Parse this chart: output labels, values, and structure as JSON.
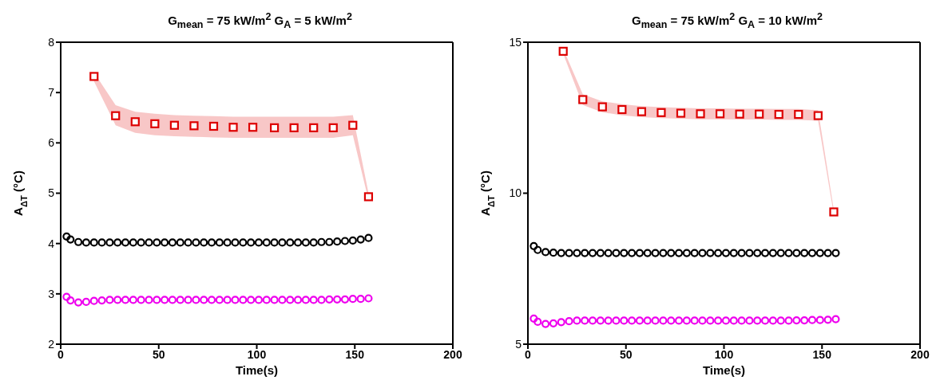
{
  "chart_data": [
    {
      "type": "scatter",
      "title": "G$_{mean}$ = 75 kW/m$^{2}$ G$_{A}$ = 5 kW/m$^{2}$",
      "xlabel": "Time(s)",
      "ylabel": "A$_{ΔT}$ (°C)",
      "xlim": [
        0,
        200
      ],
      "xticks": [
        0,
        50,
        100,
        150,
        200
      ],
      "ylim": [
        2,
        8
      ],
      "yticks": [
        2,
        3,
        4,
        5,
        6,
        7,
        8
      ],
      "series": [
        {
          "color": "#dd0000",
          "marker": "square",
          "x": [
            17,
            28,
            38,
            48,
            58,
            68,
            78,
            88,
            98,
            109,
            119,
            129,
            139,
            149,
            157
          ],
          "values": [
            7.32,
            6.54,
            6.42,
            6.38,
            6.35,
            6.34,
            6.33,
            6.31,
            6.31,
            6.3,
            6.3,
            6.3,
            6.3,
            6.35,
            4.93
          ],
          "lower": [
            7.22,
            6.35,
            6.2,
            6.15,
            6.13,
            6.12,
            6.11,
            6.1,
            6.1,
            6.1,
            6.1,
            6.1,
            6.1,
            6.15,
            4.86
          ],
          "upper": [
            7.4,
            6.75,
            6.62,
            6.58,
            6.55,
            6.54,
            6.53,
            6.52,
            6.52,
            6.52,
            6.52,
            6.52,
            6.52,
            6.55,
            5.0
          ]
        },
        {
          "color": "#000000",
          "marker": "circle",
          "x": [
            3,
            5,
            9,
            13,
            17,
            21,
            25,
            29,
            33,
            37,
            41,
            45,
            49,
            53,
            57,
            61,
            65,
            69,
            73,
            77,
            81,
            85,
            89,
            93,
            97,
            101,
            105,
            109,
            113,
            117,
            121,
            125,
            129,
            133,
            137,
            141,
            145,
            149,
            153,
            157
          ],
          "values": [
            4.14,
            4.08,
            4.03,
            4.02,
            4.02,
            4.02,
            4.02,
            4.02,
            4.02,
            4.02,
            4.02,
            4.02,
            4.02,
            4.02,
            4.02,
            4.02,
            4.02,
            4.02,
            4.02,
            4.02,
            4.02,
            4.02,
            4.02,
            4.02,
            4.02,
            4.02,
            4.02,
            4.02,
            4.02,
            4.02,
            4.02,
            4.02,
            4.02,
            4.03,
            4.03,
            4.04,
            4.05,
            4.06,
            4.08,
            4.11
          ]
        },
        {
          "color": "#ee00ee",
          "marker": "circle",
          "x": [
            3,
            5,
            9,
            13,
            17,
            21,
            25,
            29,
            33,
            37,
            41,
            45,
            49,
            53,
            57,
            61,
            65,
            69,
            73,
            77,
            81,
            85,
            89,
            93,
            97,
            101,
            105,
            109,
            113,
            117,
            121,
            125,
            129,
            133,
            137,
            141,
            145,
            149,
            153,
            157
          ],
          "values": [
            2.94,
            2.87,
            2.83,
            2.84,
            2.86,
            2.87,
            2.88,
            2.88,
            2.88,
            2.88,
            2.88,
            2.88,
            2.88,
            2.88,
            2.88,
            2.88,
            2.88,
            2.88,
            2.88,
            2.88,
            2.88,
            2.88,
            2.88,
            2.88,
            2.88,
            2.88,
            2.88,
            2.88,
            2.88,
            2.88,
            2.88,
            2.88,
            2.88,
            2.88,
            2.89,
            2.89,
            2.89,
            2.9,
            2.9,
            2.91
          ]
        }
      ]
    },
    {
      "type": "scatter",
      "title": "G$_{mean}$ = 75 kW/m$^{2}$ G$_{A}$ = 10 kW/m$^{2}$",
      "xlabel": "Time(s)",
      "ylabel": "A$_{ΔT}$ (°C)",
      "xlim": [
        0,
        200
      ],
      "xticks": [
        0,
        50,
        100,
        150,
        200
      ],
      "ylim": [
        5,
        15
      ],
      "yticks": [
        5,
        10,
        15
      ],
      "series": [
        {
          "color": "#dd0000",
          "marker": "square",
          "x": [
            18,
            28,
            38,
            48,
            58,
            68,
            78,
            88,
            98,
            108,
            118,
            128,
            138,
            148,
            156
          ],
          "values": [
            14.7,
            13.1,
            12.86,
            12.77,
            12.7,
            12.67,
            12.65,
            12.63,
            12.63,
            12.62,
            12.62,
            12.61,
            12.61,
            12.57,
            9.38
          ],
          "lower": [
            14.62,
            12.92,
            12.68,
            12.58,
            12.52,
            12.49,
            12.47,
            12.45,
            12.45,
            12.44,
            12.44,
            12.43,
            12.43,
            12.4,
            9.3
          ],
          "upper": [
            14.78,
            13.28,
            13.04,
            12.95,
            12.88,
            12.85,
            12.83,
            12.81,
            12.81,
            12.8,
            12.8,
            12.79,
            12.79,
            12.75,
            9.46
          ]
        },
        {
          "color": "#000000",
          "marker": "circle",
          "x": [
            3,
            5,
            9,
            13,
            17,
            21,
            25,
            29,
            33,
            37,
            41,
            45,
            49,
            53,
            57,
            61,
            65,
            69,
            73,
            77,
            81,
            85,
            89,
            93,
            97,
            101,
            105,
            109,
            113,
            117,
            121,
            125,
            129,
            133,
            137,
            141,
            145,
            149,
            153,
            157
          ],
          "values": [
            8.25,
            8.12,
            8.05,
            8.03,
            8.02,
            8.02,
            8.02,
            8.02,
            8.02,
            8.02,
            8.02,
            8.02,
            8.02,
            8.02,
            8.02,
            8.02,
            8.02,
            8.02,
            8.02,
            8.02,
            8.02,
            8.02,
            8.02,
            8.02,
            8.02,
            8.02,
            8.02,
            8.02,
            8.02,
            8.02,
            8.02,
            8.02,
            8.02,
            8.02,
            8.02,
            8.02,
            8.02,
            8.02,
            8.02,
            8.02
          ]
        },
        {
          "color": "#ee00ee",
          "marker": "circle",
          "x": [
            3,
            5,
            9,
            13,
            17,
            21,
            25,
            29,
            33,
            37,
            41,
            45,
            49,
            53,
            57,
            61,
            65,
            69,
            73,
            77,
            81,
            85,
            89,
            93,
            97,
            101,
            105,
            109,
            113,
            117,
            121,
            125,
            129,
            133,
            137,
            141,
            145,
            149,
            153,
            157
          ],
          "values": [
            5.85,
            5.74,
            5.67,
            5.69,
            5.73,
            5.76,
            5.78,
            5.78,
            5.78,
            5.78,
            5.78,
            5.78,
            5.78,
            5.78,
            5.78,
            5.78,
            5.78,
            5.78,
            5.78,
            5.78,
            5.78,
            5.78,
            5.78,
            5.78,
            5.78,
            5.78,
            5.78,
            5.78,
            5.78,
            5.78,
            5.78,
            5.78,
            5.78,
            5.78,
            5.79,
            5.79,
            5.8,
            5.8,
            5.81,
            5.83
          ]
        }
      ]
    }
  ]
}
